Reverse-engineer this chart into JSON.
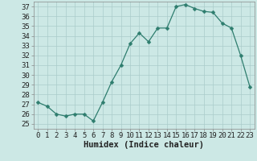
{
  "x": [
    0,
    1,
    2,
    3,
    4,
    5,
    6,
    7,
    8,
    9,
    10,
    11,
    12,
    13,
    14,
    15,
    16,
    17,
    18,
    19,
    20,
    21,
    22,
    23
  ],
  "y": [
    27.2,
    26.8,
    26.0,
    25.8,
    26.0,
    26.0,
    25.3,
    27.2,
    29.3,
    31.0,
    33.2,
    34.3,
    33.4,
    34.8,
    34.8,
    37.0,
    37.2,
    36.8,
    36.5,
    36.4,
    35.3,
    34.8,
    32.0,
    28.8
  ],
  "line_color": "#2e7d6e",
  "marker": "D",
  "marker_size": 2.5,
  "bg_color": "#cce8e5",
  "grid_color": "#aaccca",
  "xlabel": "Humidex (Indice chaleur)",
  "xlim": [
    -0.5,
    23.5
  ],
  "ylim": [
    24.5,
    37.5
  ],
  "yticks": [
    25,
    26,
    27,
    28,
    29,
    30,
    31,
    32,
    33,
    34,
    35,
    36,
    37
  ],
  "xticks": [
    0,
    1,
    2,
    3,
    4,
    5,
    6,
    7,
    8,
    9,
    10,
    11,
    12,
    13,
    14,
    15,
    16,
    17,
    18,
    19,
    20,
    21,
    22,
    23
  ],
  "tick_fontsize": 6.5,
  "label_fontsize": 7.5
}
